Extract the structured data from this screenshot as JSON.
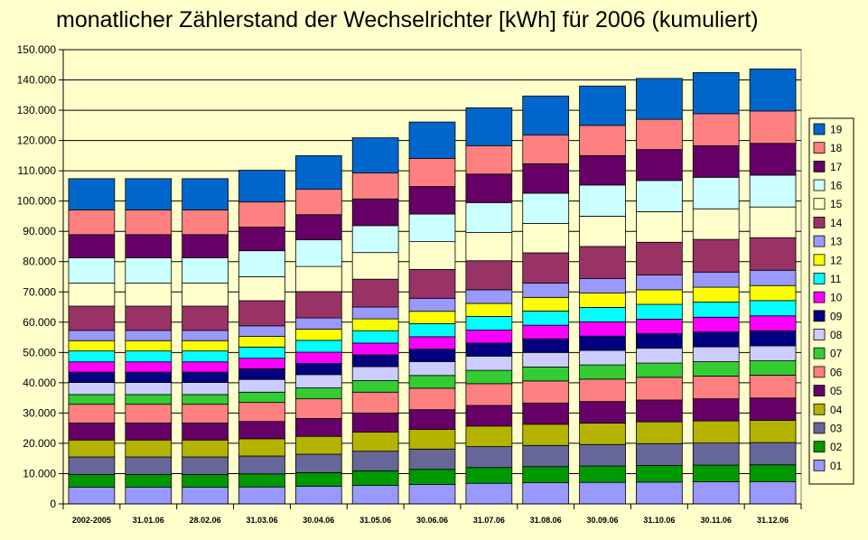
{
  "chart_data": {
    "type": "bar",
    "stacked": true,
    "title": "monatlicher Zählerstand der Wechselrichter [kWh] für 2006 (kumuliert)",
    "ylim": [
      0,
      150000
    ],
    "ytick_step": 10000,
    "ytick_labels": [
      "0",
      "10.000",
      "20.000",
      "30.000",
      "40.000",
      "50.000",
      "60.000",
      "70.000",
      "80.000",
      "90.000",
      "100.000",
      "110.000",
      "120.000",
      "130.000",
      "140.000",
      "150.000"
    ],
    "grid": true,
    "legend_position": "right",
    "categories": [
      "2002-2005",
      "31.01.06",
      "28.02.06",
      "31.03.06",
      "30.04.06",
      "31.05.06",
      "30.06.06",
      "31.07.06",
      "31.08.06",
      "30.09.06",
      "31.10.06",
      "30.11.06",
      "31.12.06"
    ],
    "series": [
      {
        "name": "01",
        "color": "#9999ff",
        "values": [
          5500,
          5500,
          5500,
          5600,
          5800,
          6100,
          6400,
          6800,
          7000,
          7100,
          7200,
          7300,
          7350
        ]
      },
      {
        "name": "02",
        "color": "#009900",
        "values": [
          4200,
          4200,
          4200,
          4300,
          4500,
          4800,
          5000,
          5200,
          5300,
          5400,
          5500,
          5500,
          5550
        ]
      },
      {
        "name": "03",
        "color": "#666699",
        "values": [
          5800,
          5800,
          5800,
          5900,
          6100,
          6500,
          6700,
          6900,
          7000,
          7100,
          7200,
          7300,
          7350
        ]
      },
      {
        "name": "04",
        "color": "#b3b300",
        "values": [
          5600,
          5600,
          5600,
          5700,
          5900,
          6300,
          6500,
          6800,
          7000,
          7100,
          7200,
          7300,
          7350
        ]
      },
      {
        "name": "05",
        "color": "#660066",
        "values": [
          5600,
          5600,
          5600,
          5700,
          5900,
          6300,
          6500,
          6800,
          7000,
          7100,
          7200,
          7300,
          7350
        ]
      },
      {
        "name": "06",
        "color": "#ff8080",
        "values": [
          6200,
          6200,
          6200,
          6300,
          6500,
          6900,
          7100,
          7200,
          7300,
          7400,
          7500,
          7500,
          7550
        ]
      },
      {
        "name": "07",
        "color": "#33cc33",
        "values": [
          3200,
          3200,
          3200,
          3400,
          3600,
          3800,
          4200,
          4400,
          4600,
          4700,
          4700,
          4750,
          4750
        ]
      },
      {
        "name": "08",
        "color": "#ccccff",
        "values": [
          4000,
          4000,
          4000,
          4200,
          4400,
          4600,
          4600,
          4700,
          4800,
          4800,
          4900,
          4900,
          4950
        ]
      },
      {
        "name": "09",
        "color": "#000080",
        "values": [
          3400,
          3400,
          3400,
          3500,
          3700,
          3900,
          4100,
          4300,
          4500,
          4700,
          4800,
          4900,
          4950
        ]
      },
      {
        "name": "10",
        "color": "#ff00ff",
        "values": [
          3400,
          3400,
          3400,
          3500,
          3700,
          3900,
          4100,
          4300,
          4500,
          4700,
          4800,
          4900,
          4950
        ]
      },
      {
        "name": "11",
        "color": "#00ffff",
        "values": [
          3600,
          3600,
          3600,
          3700,
          3900,
          4100,
          4300,
          4500,
          4700,
          4800,
          4900,
          5000,
          5050
        ]
      },
      {
        "name": "12",
        "color": "#ffff00",
        "values": [
          3400,
          3400,
          3400,
          3500,
          3700,
          3900,
          4100,
          4300,
          4500,
          4700,
          4800,
          4900,
          4950
        ]
      },
      {
        "name": "13",
        "color": "#9999ff",
        "values": [
          3400,
          3400,
          3400,
          3500,
          3700,
          3900,
          4300,
          4500,
          4700,
          4800,
          4900,
          5000,
          5050
        ]
      },
      {
        "name": "14",
        "color": "#993366",
        "values": [
          8000,
          8000,
          8000,
          8300,
          8700,
          9200,
          9500,
          9600,
          10000,
          10600,
          10800,
          10800,
          10750
        ]
      },
      {
        "name": "15",
        "color": "#ffffcc",
        "values": [
          7600,
          7600,
          7600,
          7900,
          8300,
          8800,
          9200,
          9300,
          9700,
          10000,
          10100,
          10100,
          10150
        ]
      },
      {
        "name": "16",
        "color": "#ccffff",
        "values": [
          8400,
          8400,
          8400,
          8600,
          8800,
          8900,
          9100,
          9900,
          10000,
          10300,
          10300,
          10400,
          10500
        ]
      },
      {
        "name": "17",
        "color": "#660066",
        "values": [
          7600,
          7600,
          7600,
          7800,
          8300,
          8800,
          9100,
          9400,
          9700,
          9700,
          10200,
          10400,
          10500
        ]
      },
      {
        "name": "18",
        "color": "#ff8080",
        "values": [
          8200,
          8200,
          8200,
          8300,
          8400,
          8600,
          9300,
          9400,
          9500,
          10000,
          10000,
          10600,
          10700
        ]
      },
      {
        "name": "19",
        "color": "#0066cc",
        "values": [
          10300,
          10300,
          10300,
          10500,
          11100,
          11600,
          12000,
          12500,
          12900,
          13000,
          13500,
          13600,
          13900
        ]
      }
    ]
  }
}
